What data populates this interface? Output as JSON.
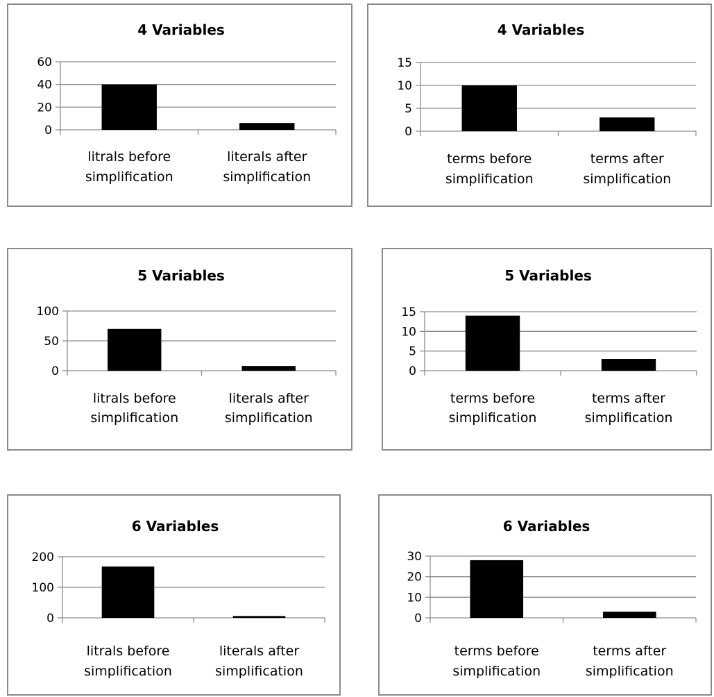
{
  "chart_data": [
    {
      "type": "bar",
      "title": "4 Variables",
      "categories": [
        "litrals before simplification",
        "literals after simplification"
      ],
      "category_lines": [
        [
          "litrals before",
          "simplification"
        ],
        [
          "literals after",
          "simplification"
        ]
      ],
      "values": [
        40,
        6
      ],
      "ylim": [
        0,
        60
      ],
      "yticks": [
        0,
        20,
        40,
        60
      ],
      "grid": true,
      "legend": "none"
    },
    {
      "type": "bar",
      "title": "4 Variables",
      "categories": [
        "terms before simplification",
        "terms after simplification"
      ],
      "category_lines": [
        [
          "terms before",
          "simplification"
        ],
        [
          "terms after",
          "simplification"
        ]
      ],
      "values": [
        10,
        3
      ],
      "ylim": [
        0,
        15
      ],
      "yticks": [
        0,
        5,
        10,
        15
      ],
      "grid": true,
      "legend": "none"
    },
    {
      "type": "bar",
      "title": "5 Variables",
      "categories": [
        "litrals before simplification",
        "literals after simplification"
      ],
      "category_lines": [
        [
          "litrals before",
          "simplification"
        ],
        [
          "literals after",
          "simplification"
        ]
      ],
      "values": [
        70,
        8
      ],
      "ylim": [
        0,
        100
      ],
      "yticks": [
        0,
        50,
        100
      ],
      "grid": true,
      "legend": "none"
    },
    {
      "type": "bar",
      "title": "5 Variables",
      "categories": [
        "terms before simplification",
        "terms after simplification"
      ],
      "category_lines": [
        [
          "terms before",
          "simplification"
        ],
        [
          "terms after",
          "simplification"
        ]
      ],
      "values": [
        14,
        3
      ],
      "ylim": [
        0,
        15
      ],
      "yticks": [
        0,
        5,
        10,
        15
      ],
      "grid": true,
      "legend": "none"
    },
    {
      "type": "bar",
      "title": "6 Variables",
      "categories": [
        "litrals before simplification",
        "literals after simplification"
      ],
      "category_lines": [
        [
          "litrals before",
          "simplification"
        ],
        [
          "literals after",
          "simplification"
        ]
      ],
      "values": [
        168,
        6
      ],
      "ylim": [
        0,
        200
      ],
      "yticks": [
        0,
        100,
        200
      ],
      "grid": true,
      "legend": "none"
    },
    {
      "type": "bar",
      "title": "6 Variables",
      "categories": [
        "terms before simplification",
        "terms after simplification"
      ],
      "category_lines": [
        [
          "terms before",
          "simplification"
        ],
        [
          "terms after",
          "simplification"
        ]
      ],
      "values": [
        28,
        3
      ],
      "ylim": [
        0,
        30
      ],
      "yticks": [
        0,
        10,
        20,
        30
      ],
      "grid": true,
      "legend": "none"
    }
  ],
  "colors": {
    "bar": "#000000",
    "grid": "#8c8c8c",
    "axis": "#8c8c8c",
    "border": "#8a8a8a"
  }
}
